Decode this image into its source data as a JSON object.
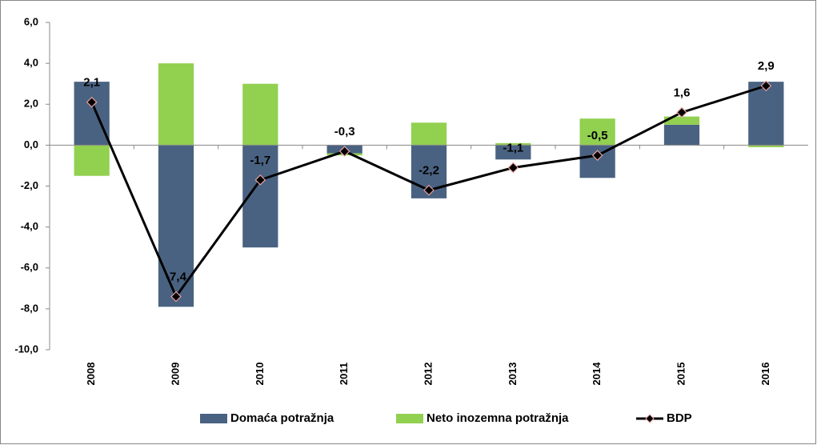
{
  "chart_data": {
    "type": "bar",
    "categories": [
      "2008",
      "2009",
      "2010",
      "2011",
      "2012",
      "2013",
      "2014",
      "2015",
      "2016"
    ],
    "series": [
      {
        "name": "Domaća potražnja",
        "color": "#4a6282",
        "type": "bar",
        "values": [
          3.1,
          -7.9,
          -5.0,
          -0.4,
          -2.6,
          -0.7,
          -1.6,
          1.0,
          3.1
        ]
      },
      {
        "name": "Neto inozemna potražnja",
        "color": "#92d050",
        "type": "bar",
        "values": [
          -1.5,
          4.0,
          3.0,
          -0.1,
          1.1,
          0.1,
          1.3,
          0.4,
          -0.1
        ]
      },
      {
        "name": "BDP",
        "color": "#000000",
        "marker_color": "#e8a0a0",
        "type": "line",
        "values": [
          2.1,
          -7.4,
          -1.7,
          -0.3,
          -2.2,
          -1.1,
          -0.5,
          1.6,
          2.9
        ],
        "value_labels": [
          "2,1",
          "-7,4",
          "-1,7",
          "-0,3",
          "-2,2",
          "-1,1",
          "-0,5",
          "1,6",
          "2,9"
        ]
      }
    ],
    "stacked": true,
    "ylim": [
      -10,
      6
    ],
    "yticks": [
      {
        "value": -10,
        "label": "-10,0"
      },
      {
        "value": -8,
        "label": "-8,0"
      },
      {
        "value": -6,
        "label": "-6,0"
      },
      {
        "value": -4,
        "label": "-4,0"
      },
      {
        "value": -2,
        "label": "-2,0"
      },
      {
        "value": 0,
        "label": "0,0"
      },
      {
        "value": 2,
        "label": "2,0"
      },
      {
        "value": 4,
        "label": "4,0"
      },
      {
        "value": 6,
        "label": "6,0"
      }
    ],
    "grid": false,
    "legend": "bottom"
  }
}
